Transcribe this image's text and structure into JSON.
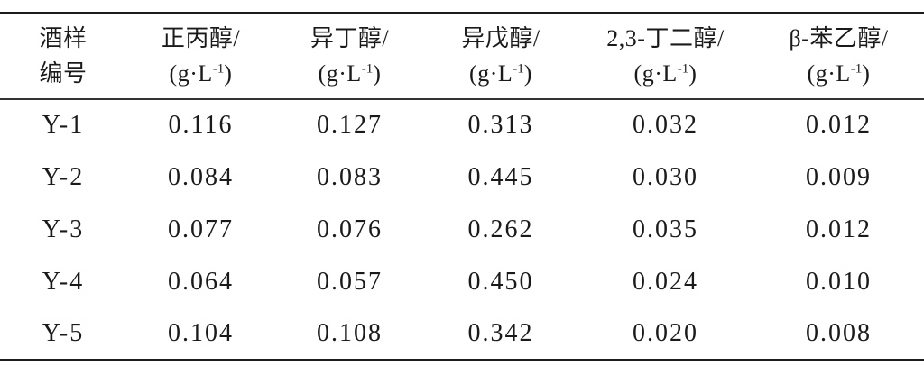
{
  "table": {
    "columns": [
      {
        "title_line1": "酒样",
        "title_line2": "编号"
      },
      {
        "title": "正丙醇/"
      },
      {
        "title": "异丁醇/"
      },
      {
        "title": "异戊醇/"
      },
      {
        "title": "2,3-丁二醇/"
      },
      {
        "title": "β-苯乙醇/"
      }
    ],
    "unit": {
      "prefix": "(g·L",
      "sup": "-1",
      "suffix": ")"
    },
    "rows": [
      {
        "id": "Y-1",
        "values": [
          "0.116",
          "0.127",
          "0.313",
          "0.032",
          "0.012"
        ]
      },
      {
        "id": "Y-2",
        "values": [
          "0.084",
          "0.083",
          "0.445",
          "0.030",
          "0.009"
        ]
      },
      {
        "id": "Y-3",
        "values": [
          "0.077",
          "0.076",
          "0.262",
          "0.035",
          "0.012"
        ]
      },
      {
        "id": "Y-4",
        "values": [
          "0.064",
          "0.057",
          "0.450",
          "0.024",
          "0.010"
        ]
      },
      {
        "id": "Y-5",
        "values": [
          "0.104",
          "0.108",
          "0.342",
          "0.020",
          "0.008"
        ]
      }
    ]
  },
  "chart_data": {
    "type": "table",
    "columns": [
      "酒样编号",
      "正丙醇/(g·L⁻¹)",
      "异丁醇/(g·L⁻¹)",
      "异戊醇/(g·L⁻¹)",
      "2,3-丁二醇/(g·L⁻¹)",
      "β-苯乙醇/(g·L⁻¹)"
    ],
    "rows": [
      [
        "Y-1",
        0.116,
        0.127,
        0.313,
        0.032,
        0.012
      ],
      [
        "Y-2",
        0.084,
        0.083,
        0.445,
        0.03,
        0.009
      ],
      [
        "Y-3",
        0.077,
        0.076,
        0.262,
        0.035,
        0.012
      ],
      [
        "Y-4",
        0.064,
        0.057,
        0.45,
        0.024,
        0.01
      ],
      [
        "Y-5",
        0.104,
        0.108,
        0.342,
        0.02,
        0.008
      ]
    ]
  },
  "colors": {
    "text": "#1a1a1a",
    "rule_heavy": "#1c1c1c",
    "rule_light": "#333333",
    "background": "#ffffff"
  }
}
